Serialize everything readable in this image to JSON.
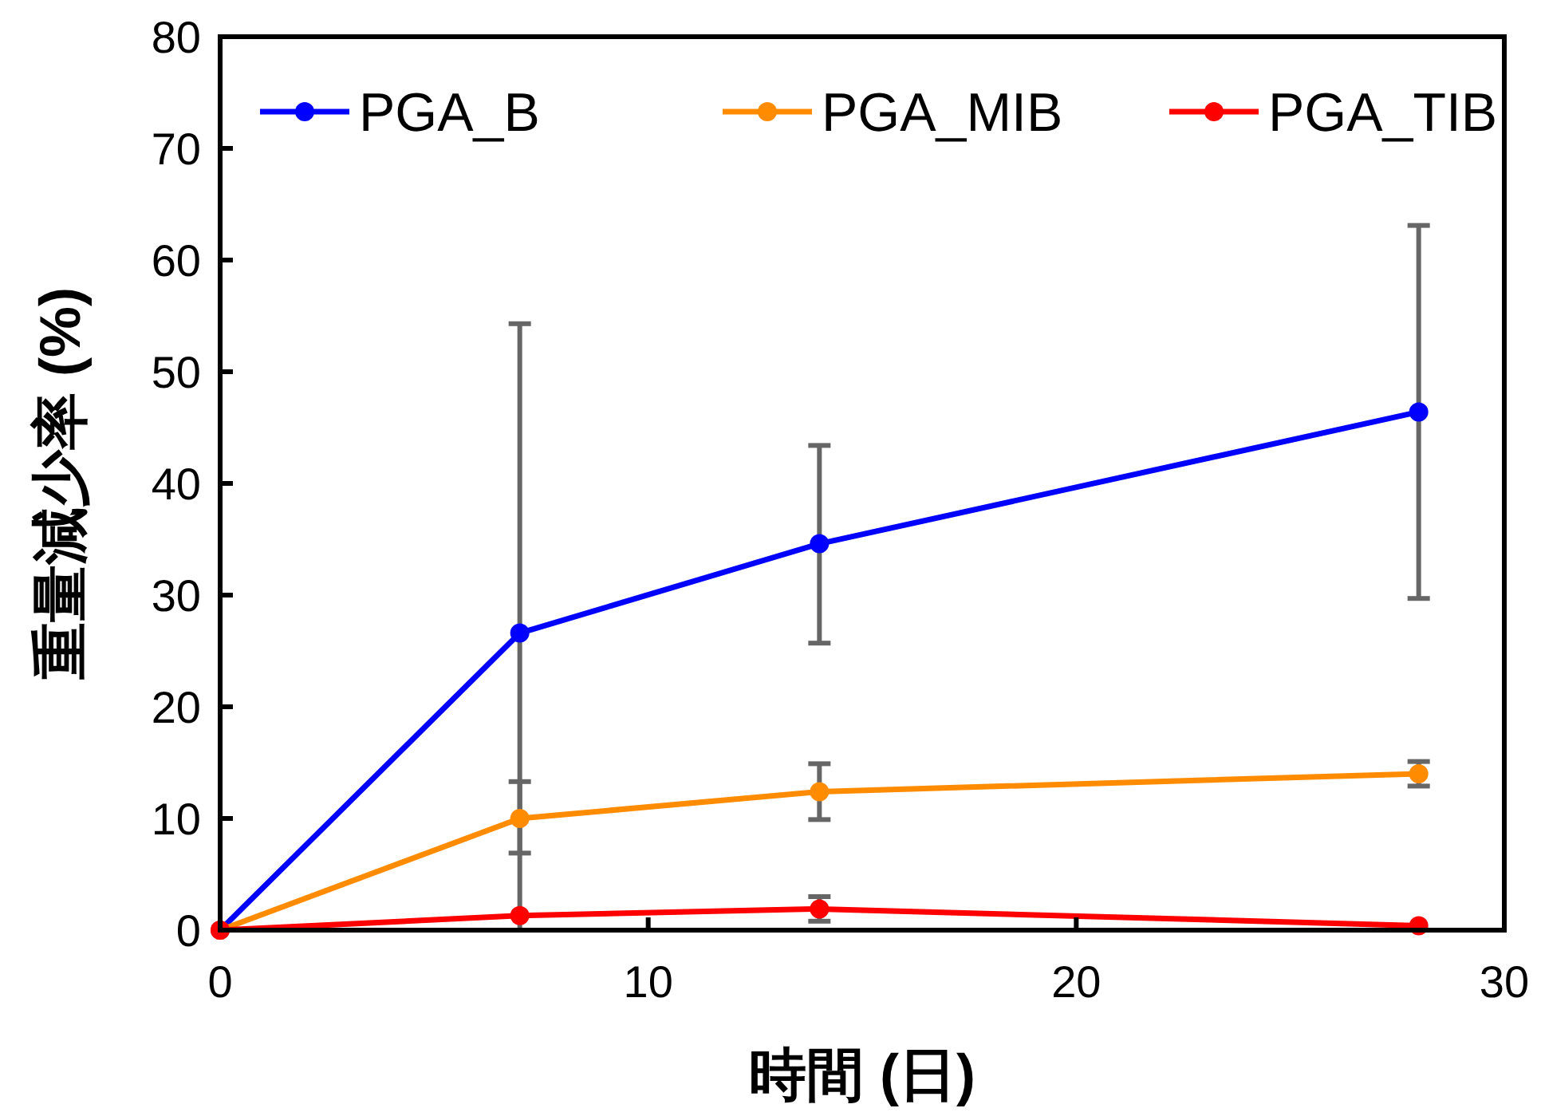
{
  "chart_data": {
    "type": "line",
    "xlabel": "時間 (日)",
    "ylabel": "重量減少率 (%)",
    "x": [
      0,
      7,
      14,
      28
    ],
    "xlim": [
      0,
      30
    ],
    "xticks": [
      0,
      10,
      20,
      30
    ],
    "ylim": [
      0,
      80
    ],
    "yticks": [
      0,
      10,
      20,
      30,
      40,
      50,
      60,
      70,
      80
    ],
    "grid": false,
    "legend": "top",
    "marker": "circle",
    "line_style": "solid",
    "series": [
      {
        "name": "PGA_B",
        "color": "#0000ff",
        "values": [
          0,
          26.6,
          34.6,
          46.4
        ],
        "errors": [
          null,
          [
            0,
            54.3
          ],
          [
            25.7,
            43.4
          ],
          [
            29.7,
            63.1
          ]
        ]
      },
      {
        "name": "PGA_MIB",
        "color": "#ff8c00",
        "values": [
          0,
          10.0,
          12.4,
          14.0
        ],
        "errors": [
          null,
          [
            6.9,
            13.3
          ],
          [
            9.9,
            14.9
          ],
          [
            12.9,
            15.1
          ]
        ]
      },
      {
        "name": "PGA_TIB",
        "color": "#ff0000",
        "values": [
          0,
          1.3,
          1.9,
          0.4
        ],
        "errors": [
          null,
          null,
          1.1,
          null
        ]
      }
    ]
  }
}
